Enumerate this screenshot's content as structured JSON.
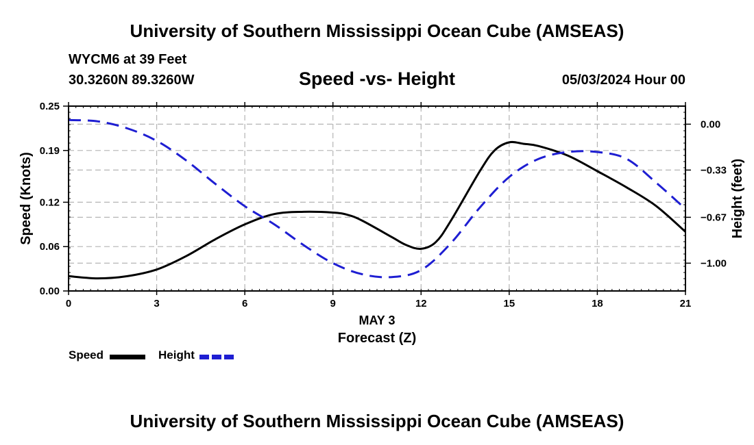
{
  "header": {
    "title": "University of Southern Mississippi Ocean Cube (AMSEAS)",
    "station": "WYCM6 at 39 Feet",
    "coords": "30.3260N  89.3260W",
    "chart_title": "Speed -vs- Height",
    "datetime": "05/03/2024 Hour 00"
  },
  "footer": {
    "title": "University of Southern Mississippi Ocean Cube (AMSEAS)"
  },
  "legend": {
    "speed_label": "Speed",
    "height_label": "Height"
  },
  "colors": {
    "speed": "#000000",
    "height": "#1e1ed2",
    "grid": "#b4b4b4"
  },
  "chart_data": {
    "type": "line",
    "title": "Speed -vs- Height",
    "xlabel": "Forecast (Z)",
    "xlabel_date": "MAY 3",
    "ylabel_left": "Speed (Knots)",
    "ylabel_right": "Height (feet)",
    "xlim": [
      0,
      21
    ],
    "ylim_left": [
      0,
      0.25
    ],
    "ylim_right": [
      -1.2,
      0.13
    ],
    "x_ticks": [
      0,
      3,
      6,
      9,
      12,
      15,
      18,
      21
    ],
    "x_tick_labels": [
      "0",
      "3",
      "6",
      "9",
      "12",
      "15",
      "18",
      "21"
    ],
    "y_left_ticks": [
      0,
      0.06,
      0.12,
      0.19,
      0.25
    ],
    "y_left_tick_labels": [
      "0.00",
      "0.06",
      "0.12",
      "0.19",
      "0.25"
    ],
    "y_right_ticks": [
      0,
      -0.33,
      -0.67,
      -1.0
    ],
    "y_right_tick_labels": [
      "0.00",
      "−0.33",
      "−0.67",
      "−1.00"
    ],
    "grid": true,
    "legend_position": "bottom-left",
    "series": [
      {
        "name": "Speed",
        "axis": "left",
        "style": "solid",
        "x": [
          0,
          1,
          2,
          3,
          4,
          5,
          6,
          7,
          8,
          9,
          9.5,
          10,
          11,
          11.5,
          12,
          12.5,
          13,
          14,
          14.5,
          15,
          15.5,
          16,
          17,
          18,
          19,
          20,
          21
        ],
        "values": [
          0.02,
          0.017,
          0.02,
          0.029,
          0.047,
          0.07,
          0.09,
          0.104,
          0.107,
          0.106,
          0.103,
          0.095,
          0.073,
          0.062,
          0.057,
          0.066,
          0.094,
          0.162,
          0.19,
          0.201,
          0.199,
          0.196,
          0.183,
          0.162,
          0.14,
          0.115,
          0.08
        ]
      },
      {
        "name": "Height",
        "axis": "right",
        "style": "dashed",
        "x": [
          0,
          1,
          2,
          3,
          4,
          5,
          6,
          7,
          8,
          9,
          10,
          11,
          12,
          13,
          14,
          15,
          16,
          17,
          18,
          19,
          20,
          21
        ],
        "values": [
          0.03,
          0.02,
          -0.03,
          -0.12,
          -0.26,
          -0.43,
          -0.59,
          -0.72,
          -0.87,
          -1.0,
          -1.08,
          -1.1,
          -1.05,
          -0.86,
          -0.6,
          -0.38,
          -0.25,
          -0.2,
          -0.2,
          -0.25,
          -0.42,
          -0.61
        ]
      }
    ]
  }
}
